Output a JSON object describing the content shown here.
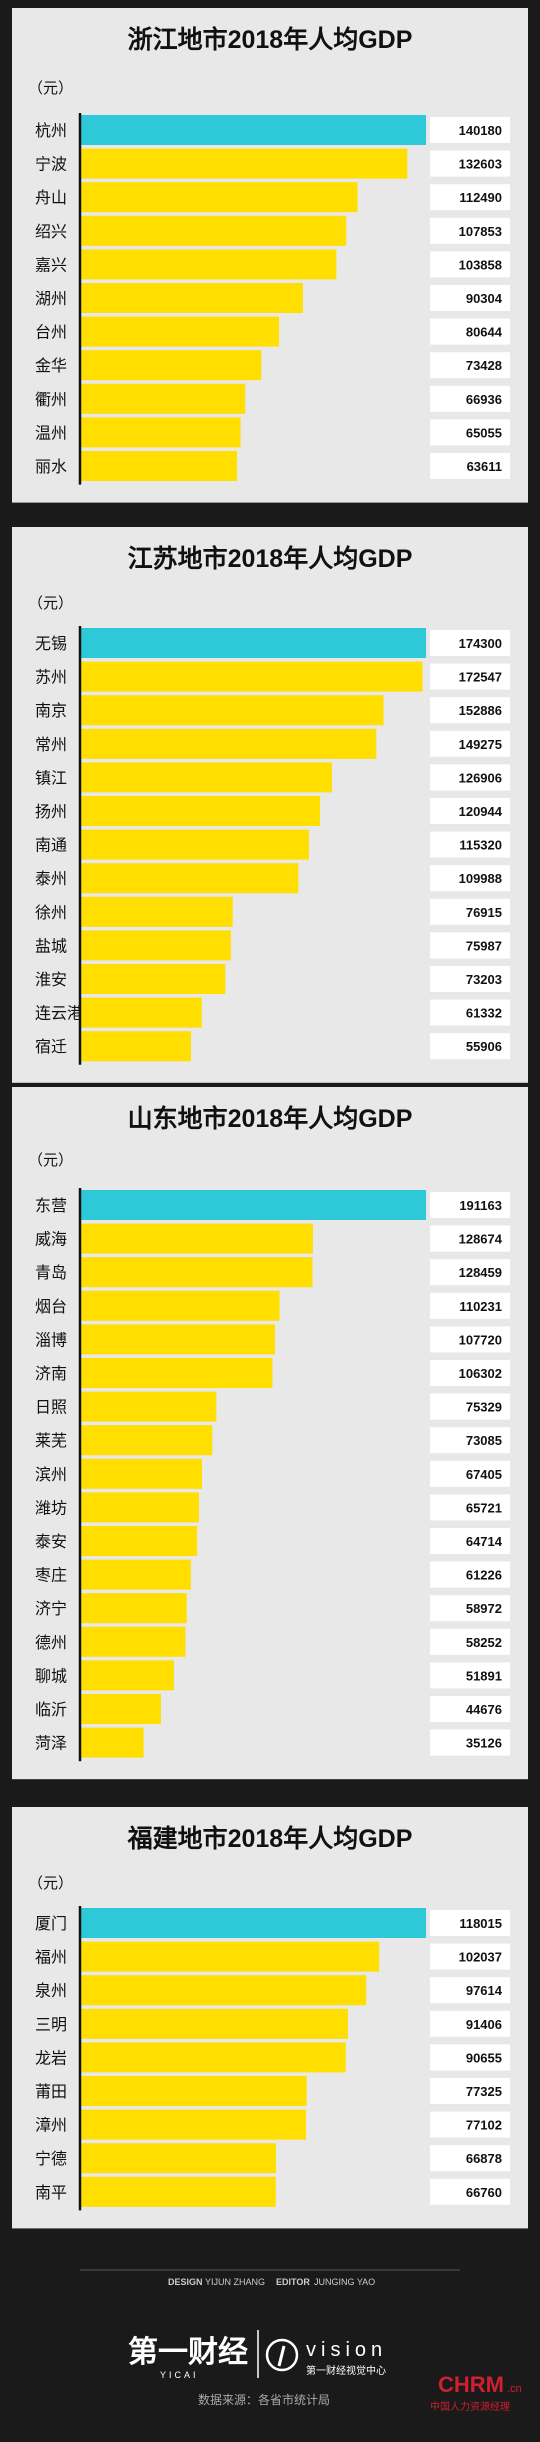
{
  "colors": {
    "page_bg": "#1a1a1a",
    "panel_bg": "#e8e8e8",
    "highlight_bar": "#2ec9d9",
    "normal_bar": "#ffde00",
    "value_bg": "#ffffff",
    "text": "#111111"
  },
  "chart_data": [
    {
      "type": "bar",
      "orientation": "horizontal",
      "title": "浙江地市2018年人均GDP",
      "unit_label": "（元）",
      "highlight_first": true,
      "categories": [
        "杭州",
        "宁波",
        "舟山",
        "绍兴",
        "嘉兴",
        "湖州",
        "台州",
        "金华",
        "衢州",
        "温州",
        "丽水"
      ],
      "values": [
        140180,
        132603,
        112490,
        107853,
        103858,
        90304,
        80644,
        73428,
        66936,
        65055,
        63611
      ],
      "xlim": [
        0,
        140180
      ]
    },
    {
      "type": "bar",
      "orientation": "horizontal",
      "title": "江苏地市2018年人均GDP",
      "unit_label": "（元）",
      "highlight_first": true,
      "categories": [
        "无锡",
        "苏州",
        "南京",
        "常州",
        "镇江",
        "扬州",
        "南通",
        "泰州",
        "徐州",
        "盐城",
        "淮安",
        "连云港",
        "宿迁"
      ],
      "values": [
        174300,
        172547,
        152886,
        149275,
        126906,
        120944,
        115320,
        109988,
        76915,
        75987,
        73203,
        61332,
        55906
      ],
      "xlim": [
        0,
        174300
      ]
    },
    {
      "type": "bar",
      "orientation": "horizontal",
      "title": "山东地市2018年人均GDP",
      "unit_label": "（元）",
      "highlight_first": true,
      "categories": [
        "东营",
        "威海",
        "青岛",
        "烟台",
        "淄博",
        "济南",
        "日照",
        "莱芜",
        "滨州",
        "潍坊",
        "泰安",
        "枣庄",
        "济宁",
        "德州",
        "聊城",
        "临沂",
        "菏泽"
      ],
      "values": [
        191163,
        128674,
        128459,
        110231,
        107720,
        106302,
        75329,
        73085,
        67405,
        65721,
        64714,
        61226,
        58972,
        58252,
        51891,
        44676,
        35126
      ],
      "xlim": [
        0,
        191163
      ]
    },
    {
      "type": "bar",
      "orientation": "horizontal",
      "title": "福建地市2018年人均GDP",
      "unit_label": "（元）",
      "highlight_first": true,
      "categories": [
        "厦门",
        "福州",
        "泉州",
        "三明",
        "龙岩",
        "莆田",
        "漳州",
        "宁德",
        "南平"
      ],
      "values": [
        118015,
        102037,
        97614,
        91406,
        90655,
        77325,
        77102,
        66878,
        66760
      ],
      "xlim": [
        0,
        118015
      ]
    }
  ],
  "footer": {
    "design_label": "DESIGN",
    "design_name": "YIJUN ZHANG",
    "editor_label": "EDITOR",
    "editor_name": "JUNGING YAO",
    "brand_logo": "第一财经",
    "brand_pinyin": "YICAI",
    "vision_logo": "vision",
    "vision_sub": "第一财经视觉中心",
    "source": "数据来源：各省市统计局",
    "watermark_main": "CHRM",
    "watermark_suffix": ".cn",
    "watermark_sub": "中国人力资源经理"
  }
}
